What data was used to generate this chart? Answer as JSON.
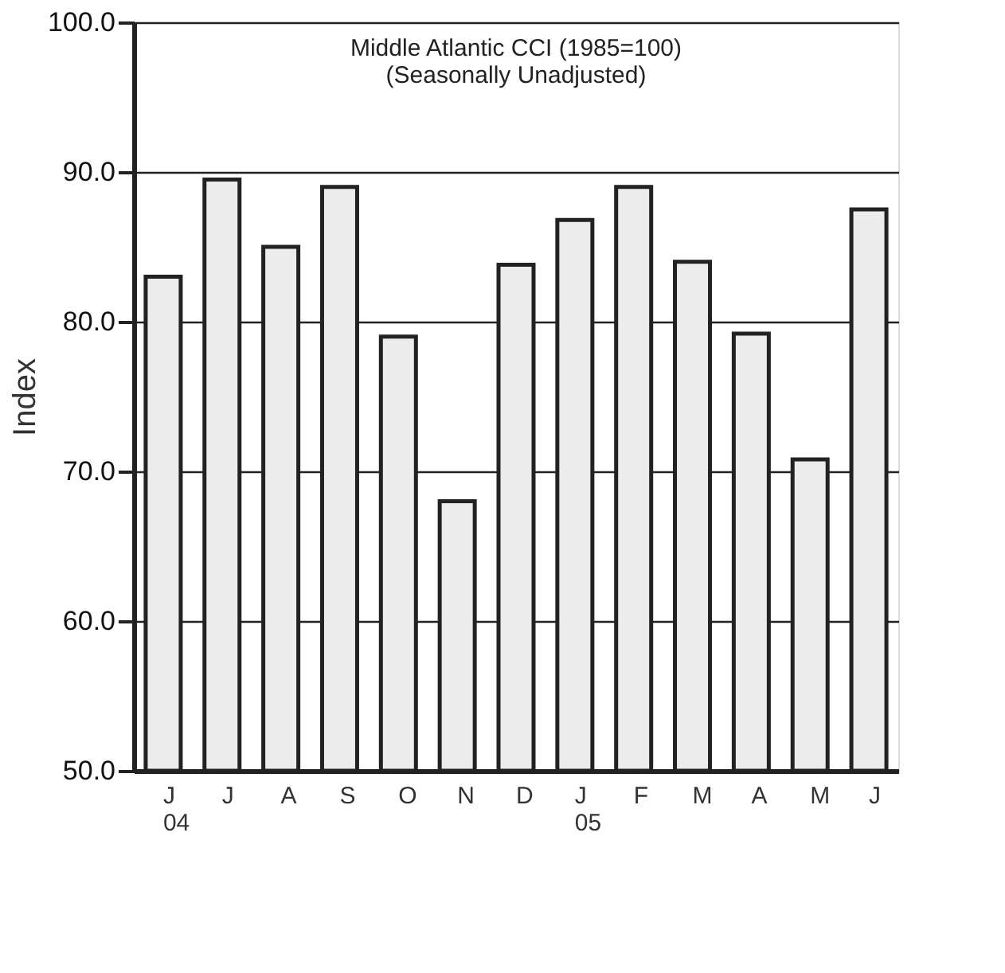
{
  "chart_data": {
    "type": "bar",
    "title": [
      "Middle Atlantic CCI (1985=100)",
      "(Seasonally Unadjusted)"
    ],
    "ylabel": "Index",
    "categories": [
      "J\n04",
      "J",
      "A",
      "S",
      "O",
      "N",
      "D",
      "J\n05",
      "F",
      "M",
      "A",
      "M",
      "J"
    ],
    "values": [
      83.0,
      89.5,
      85.0,
      89.0,
      79.0,
      68.0,
      83.8,
      86.8,
      89.0,
      84.0,
      79.2,
      70.8,
      87.5
    ],
    "color": "#ececec",
    "ylim": [
      50,
      100
    ],
    "yticks": [
      {
        "value": 50,
        "label": "50.0"
      },
      {
        "value": 60,
        "label": "60.0"
      },
      {
        "value": 70,
        "label": "70.0"
      },
      {
        "value": 80,
        "label": "80.0"
      },
      {
        "value": 90,
        "label": "90.0"
      },
      {
        "value": 100,
        "label": "100.0"
      }
    ],
    "grid": "y"
  }
}
